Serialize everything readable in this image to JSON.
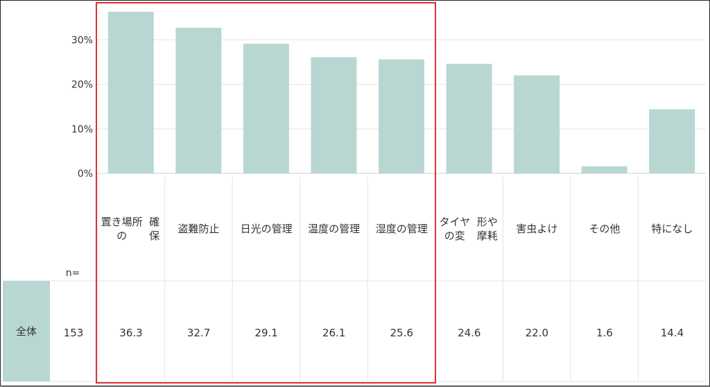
{
  "chart_data": {
    "type": "bar",
    "categories": [
      "置き場所の確保",
      "盗難防止",
      "日光の管理",
      "温度の管理",
      "湿度の管理",
      "タイヤの変形や摩耗",
      "害虫よけ",
      "その他",
      "特になし"
    ],
    "category_lines": [
      [
        "置き場所の",
        "確保"
      ],
      [
        "盗難防止"
      ],
      [
        "日光の管理"
      ],
      [
        "温度の管理"
      ],
      [
        "湿度の管理"
      ],
      [
        "タイヤの変",
        "形や摩耗"
      ],
      [
        "害虫よけ"
      ],
      [
        "その他"
      ],
      [
        "特になし"
      ]
    ],
    "values": [
      36.3,
      32.7,
      29.1,
      26.1,
      25.6,
      24.6,
      22.0,
      1.6,
      14.4
    ],
    "value_labels": [
      "36.3",
      "32.7",
      "29.1",
      "26.1",
      "25.6",
      "24.6",
      "22.0",
      "1.6",
      "14.4"
    ],
    "y_ticks": [
      0,
      10,
      20,
      30
    ],
    "y_tick_labels": [
      "0%",
      "10%",
      "20%",
      "30%"
    ],
    "ylim": [
      0,
      38
    ],
    "grid": true,
    "bar_color": "#b9d7d2",
    "highlight_color": "#e03030"
  },
  "table": {
    "n_header": "n=",
    "row_label": "全体",
    "n_value": "153"
  }
}
